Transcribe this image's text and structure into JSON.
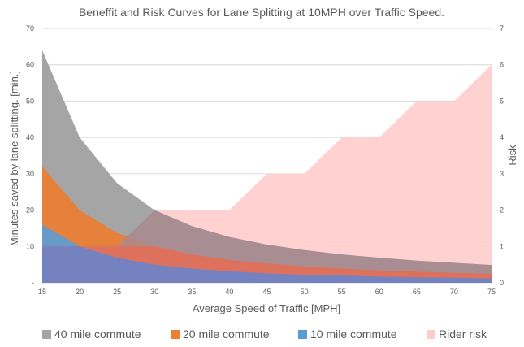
{
  "chart_data": {
    "type": "area",
    "title": "Beneffit and Risk Curves for Lane Splitting at 10MPH over Traffic Speed.",
    "xlabel": "Average Speed of Traffic [MPH]",
    "ylabel": "Minutes saved by lane splitting. [min.]",
    "y2label": "Risk",
    "categories": [
      "15",
      "20",
      "25",
      "30",
      "35",
      "40",
      "45",
      "50",
      "55",
      "60",
      "65",
      "70",
      "75"
    ],
    "x": [
      15,
      20,
      25,
      30,
      35,
      40,
      45,
      50,
      55,
      60,
      65,
      70,
      75
    ],
    "ylim": [
      0,
      70
    ],
    "y2lim": [
      0,
      7
    ],
    "y_ticks": [
      "-",
      "10",
      "20",
      "30",
      "40",
      "50",
      "60",
      "70"
    ],
    "y2_ticks": [
      "0",
      "1",
      "2",
      "3",
      "4",
      "5",
      "6",
      "7"
    ],
    "grid": true,
    "legend_position": "bottom",
    "series": [
      {
        "name": "40 mile commute",
        "axis": "left",
        "color": "#a5a5a5",
        "values": [
          64,
          40,
          27.4,
          20,
          15.6,
          12.6,
          10.5,
          9,
          7.8,
          6.9,
          6.1,
          5.5,
          4.9
        ]
      },
      {
        "name": "20 mile commute",
        "axis": "left",
        "color": "#ed7d31",
        "values": [
          32,
          20,
          13.7,
          10,
          7.8,
          6.3,
          5.3,
          4.5,
          3.9,
          3.4,
          3.1,
          2.7,
          2.5
        ]
      },
      {
        "name": "10 mile commute",
        "axis": "left",
        "color": "#5b9bd5",
        "values": [
          16,
          10,
          6.9,
          5,
          3.9,
          3.2,
          2.6,
          2.2,
          2,
          1.7,
          1.5,
          1.4,
          1.2
        ]
      },
      {
        "name": "Rider risk",
        "axis": "right",
        "color": "#ffcccc",
        "values": [
          1,
          1,
          1,
          2,
          2,
          2,
          3,
          3,
          4,
          4,
          5,
          5,
          6
        ]
      }
    ]
  }
}
